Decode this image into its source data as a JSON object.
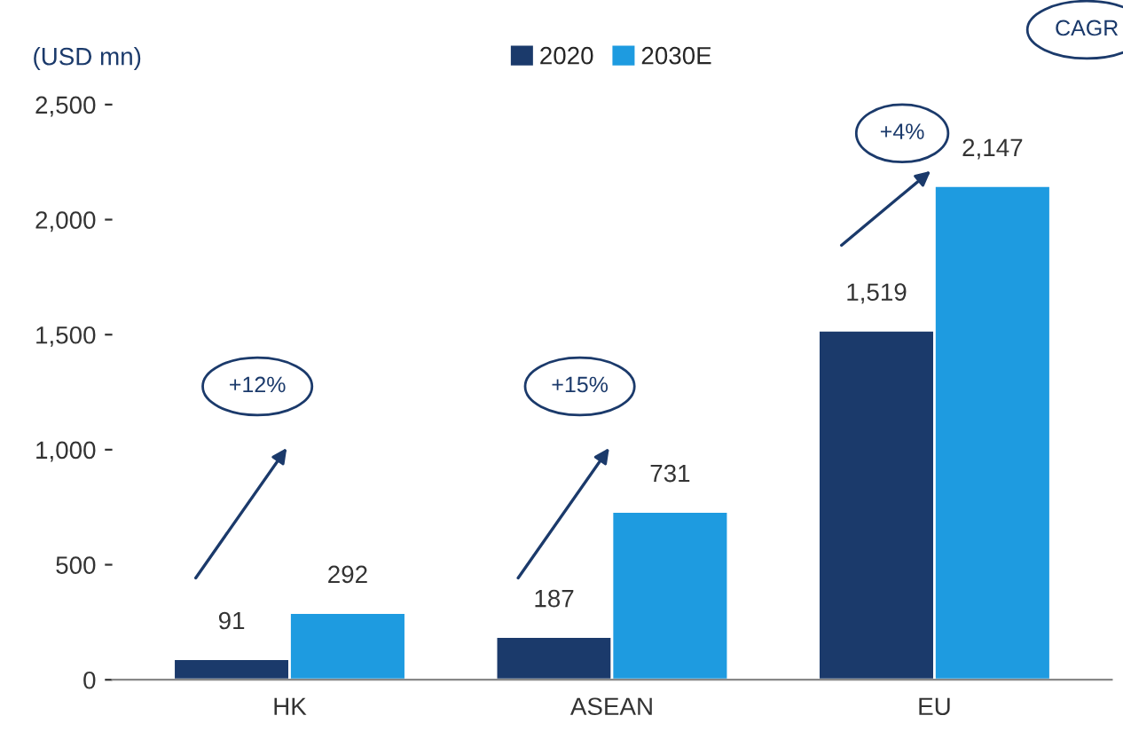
{
  "chart_data": {
    "type": "bar",
    "ylabel": "(USD mn)",
    "categories": [
      "HK",
      "ASEAN",
      "EU"
    ],
    "series": [
      {
        "name": "2020",
        "color": "#1b3a6b",
        "values": [
          91,
          187,
          1519
        ],
        "value_labels": [
          "91",
          "187",
          "1,519"
        ]
      },
      {
        "name": "2030E",
        "color": "#1e9be0",
        "values": [
          292,
          731,
          2147
        ],
        "value_labels": [
          "292",
          "731",
          "2,147"
        ]
      }
    ],
    "ylim": [
      0,
      2500
    ],
    "yticks": [
      {
        "value": 0,
        "label": "0"
      },
      {
        "value": 500,
        "label": "500"
      },
      {
        "value": 1000,
        "label": "1,000"
      },
      {
        "value": 1500,
        "label": "1,500"
      },
      {
        "value": 2000,
        "label": "2,000"
      },
      {
        "value": 2500,
        "label": "2,500"
      }
    ],
    "legend": "top",
    "annotations": [
      "CAGR",
      "+12%",
      "+15%",
      "+4%"
    ]
  }
}
